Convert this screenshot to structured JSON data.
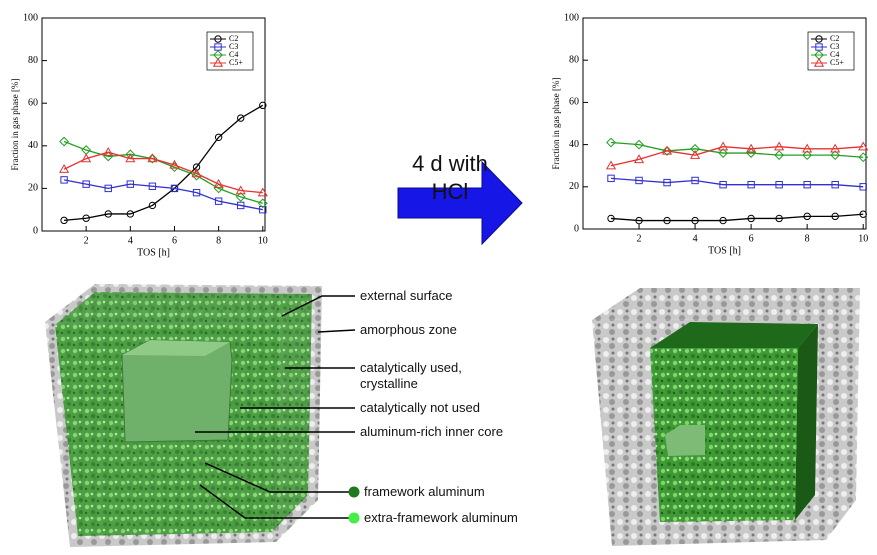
{
  "chart_data": [
    {
      "type": "line",
      "xlabel": "TOS [h]",
      "ylabel": "Fraction in gas phase [%]",
      "x": [
        1,
        2,
        3,
        4,
        5,
        6,
        7,
        8,
        9,
        10
      ],
      "xlim": [
        0,
        10.1
      ],
      "xticks": [
        2,
        4,
        6,
        8,
        10
      ],
      "ylim": [
        0,
        100
      ],
      "yticks": [
        0,
        20,
        40,
        60,
        80,
        100
      ],
      "legend": "upper right",
      "series": [
        {
          "name": "C2",
          "color": "#000000",
          "marker": "circle",
          "values": [
            5,
            6,
            8,
            8,
            12,
            20,
            30,
            44,
            53,
            59
          ]
        },
        {
          "name": "C3",
          "color": "#3030d0",
          "marker": "square",
          "values": [
            24,
            22,
            20,
            22,
            21,
            20,
            18,
            14,
            12,
            10
          ]
        },
        {
          "name": "C4",
          "color": "#20a020",
          "marker": "diamond",
          "values": [
            42,
            38,
            35,
            36,
            34,
            30,
            26,
            20,
            16,
            13
          ]
        },
        {
          "name": "C5+",
          "color": "#e83030",
          "marker": "triangle",
          "values": [
            29,
            34,
            37,
            34,
            34,
            31,
            27,
            22,
            19,
            18
          ]
        }
      ]
    },
    {
      "type": "line",
      "xlabel": "TOS [h]",
      "ylabel": "Fraction in gas phase [%]",
      "x": [
        1,
        2,
        3,
        4,
        5,
        6,
        7,
        8,
        9,
        10
      ],
      "xlim": [
        0,
        10.1
      ],
      "xticks": [
        2,
        4,
        6,
        8,
        10
      ],
      "ylim": [
        0,
        100
      ],
      "yticks": [
        0,
        20,
        40,
        60,
        80,
        100
      ],
      "legend": "upper right",
      "series": [
        {
          "name": "C2",
          "color": "#000000",
          "marker": "circle",
          "values": [
            5,
            4,
            4,
            4,
            4,
            5,
            5,
            6,
            6,
            7
          ]
        },
        {
          "name": "C3",
          "color": "#3030d0",
          "marker": "square",
          "values": [
            24,
            23,
            22,
            23,
            21,
            21,
            21,
            21,
            21,
            20
          ]
        },
        {
          "name": "C4",
          "color": "#20a020",
          "marker": "diamond",
          "values": [
            41,
            40,
            37,
            38,
            36,
            36,
            35,
            35,
            35,
            34
          ]
        },
        {
          "name": "C5+",
          "color": "#e83030",
          "marker": "triangle",
          "values": [
            30,
            33,
            37,
            35,
            39,
            38,
            39,
            38,
            38,
            39
          ]
        }
      ]
    }
  ],
  "figure": {
    "arrow_label": "4 d with HCl",
    "cube_labels": [
      "external surface",
      "amorphous zone",
      "catalytically used, crystalline",
      "catalytically not used",
      "aluminum-rich inner core"
    ],
    "aluminum_legend": [
      "framework aluminum",
      "extra-framework aluminum"
    ]
  }
}
